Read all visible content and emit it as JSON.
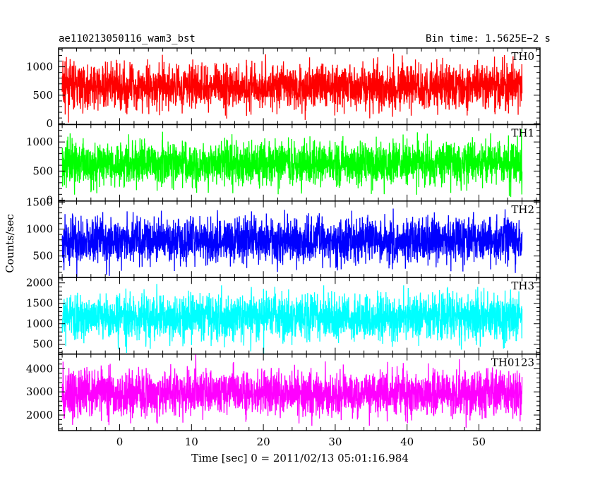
{
  "chart_data": {
    "type": "line",
    "title_left": "ae110213050116_wam3_bst",
    "title_right": "Bin time: 1.5625E−2 s",
    "xlabel": "Time [sec] 0 = 2011/02/13 05:01:16.984",
    "ylabel": "Counts/sec",
    "xlim": [
      -8.5,
      58.5
    ],
    "x_range": [
      -8,
      56
    ],
    "x_ticks": [
      "0",
      "10",
      "20",
      "30",
      "40",
      "50"
    ],
    "panels": [
      {
        "name": "TH0",
        "color": "#ff0000",
        "ylim": [
          -15,
          1330
        ],
        "y_ticks": [
          "0",
          "500",
          "1000"
        ],
        "lo": 20,
        "hi": 1320,
        "mean": 520
      },
      {
        "name": "TH1",
        "color": "#00ff00",
        "ylim": [
          -15,
          1300
        ],
        "y_ticks": [
          "0",
          "500",
          "1000"
        ],
        "lo": 10,
        "hi": 1300,
        "mean": 560
      },
      {
        "name": "TH2",
        "color": "#0000ff",
        "ylim": [
          100,
          1520
        ],
        "y_ticks": [
          "500",
          "1000",
          "1500"
        ],
        "lo": 110,
        "hi": 1520,
        "mean": 700
      },
      {
        "name": "TH3",
        "color": "#00ffff",
        "ylim": [
          260,
          2130
        ],
        "y_ticks": [
          "500",
          "1000",
          "1500",
          "2000"
        ],
        "lo": 270,
        "hi": 2130,
        "mean": 1090
      },
      {
        "name": "TH0123",
        "color": "#ff00ff",
        "ylim": [
          1330,
          4630
        ],
        "y_ticks": [
          "2000",
          "3000",
          "4000"
        ],
        "lo": 1340,
        "hi": 4630,
        "mean": 2870
      }
    ]
  }
}
